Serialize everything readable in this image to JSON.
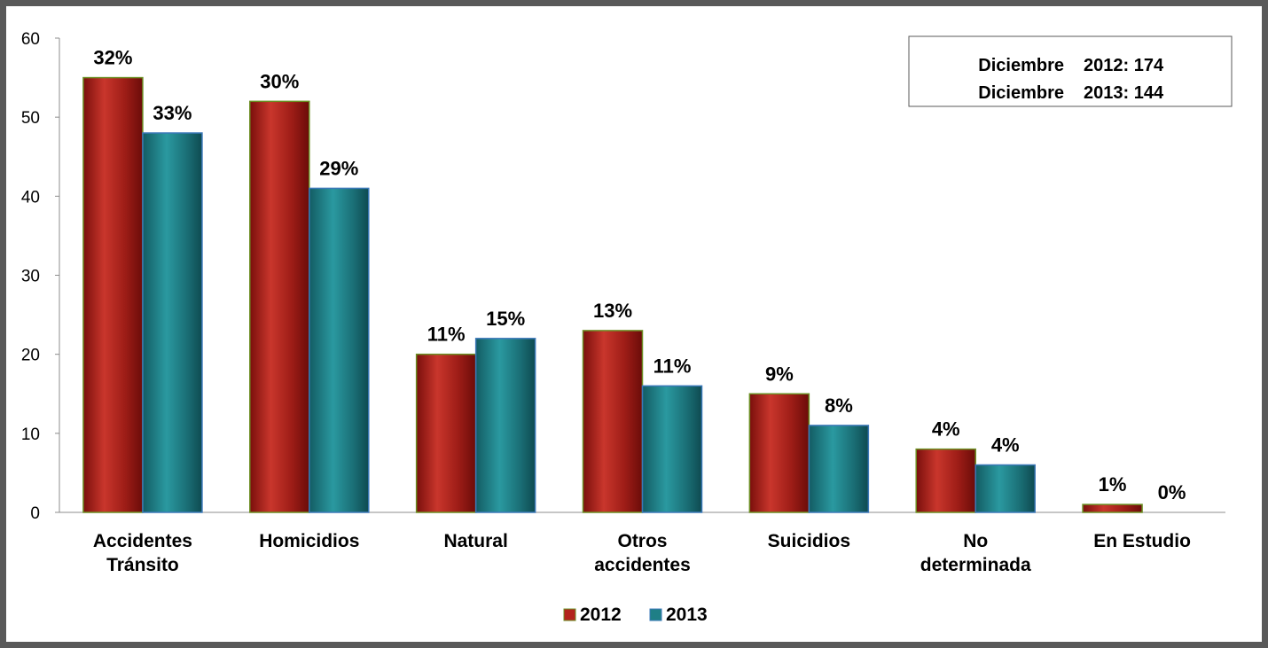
{
  "chart_data": {
    "type": "bar",
    "categories": [
      [
        "Accidentes",
        "Tránsito"
      ],
      [
        "Homicidios"
      ],
      [
        "Natural"
      ],
      [
        "Otros",
        "accidentes"
      ],
      [
        "Suicidios"
      ],
      [
        "No",
        "determinada"
      ],
      [
        "En Estudio"
      ]
    ],
    "series": [
      {
        "name": "2012",
        "values": [
          55,
          52,
          20,
          23,
          15,
          8,
          1
        ],
        "labels": [
          "32%",
          "30%",
          "11%",
          "13%",
          "9%",
          "4%",
          "1%"
        ],
        "color": "#b3231d"
      },
      {
        "name": "2013",
        "values": [
          48,
          41,
          22,
          16,
          11,
          6,
          0
        ],
        "labels": [
          "33%",
          "29%",
          "15%",
          "11%",
          "8%",
          "4%",
          "0%"
        ],
        "color": "#1f7f86"
      }
    ],
    "ylim": [
      0,
      60
    ],
    "yticks": [
      0,
      10,
      20,
      30,
      40,
      50,
      60
    ],
    "legend_position": "bottom",
    "annotation": {
      "lines": [
        {
          "label": "Diciembre",
          "value": "2012: 174"
        },
        {
          "label": "Diciembre",
          "value": "2013: 144"
        }
      ]
    }
  }
}
